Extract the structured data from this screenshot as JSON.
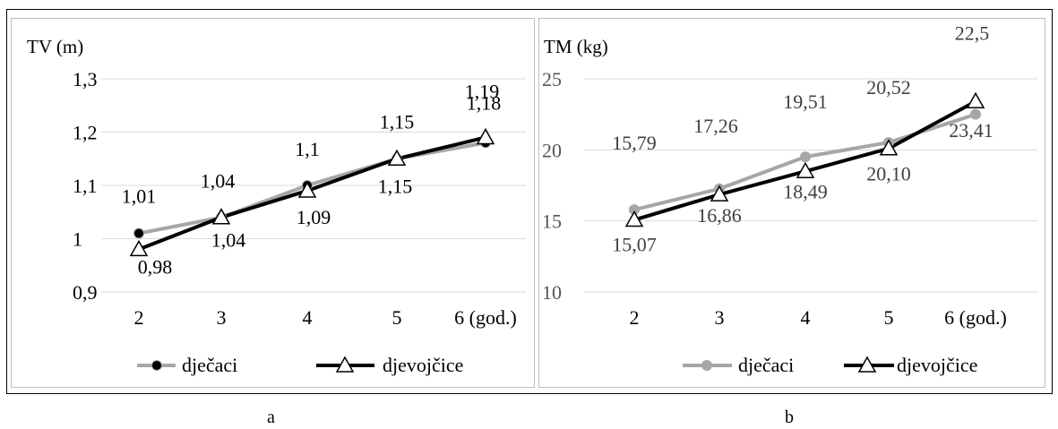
{
  "figure": {
    "caption_a": "a",
    "caption_b": "b"
  },
  "colors": {
    "boys": "#a6a6a6",
    "girls": "#000000",
    "grid": "#d9d9d9",
    "frame": "#bfbfbf"
  },
  "chart_data": [
    {
      "type": "line",
      "title": "TV (m)",
      "categories": [
        "2",
        "3",
        "4",
        "5",
        "6 (god.)"
      ],
      "ylim": [
        0.9,
        1.3
      ],
      "yticks": [
        {
          "value": 0.9,
          "label": "0,9"
        },
        {
          "value": 1.0,
          "label": "1"
        },
        {
          "value": 1.1,
          "label": "1,1"
        },
        {
          "value": 1.2,
          "label": "1,2"
        },
        {
          "value": 1.3,
          "label": "1,3"
        }
      ],
      "grid": true,
      "legend": "bottom",
      "series": [
        {
          "name": "dječaci",
          "marker": "circle",
          "color": "#a6a6a6",
          "values": [
            1.01,
            1.04,
            1.1,
            1.15,
            1.18
          ],
          "labels": [
            "1,01",
            "1,04",
            "1,1",
            "1,15",
            "1,18"
          ]
        },
        {
          "name": "djevojčice",
          "marker": "triangle",
          "color": "#000000",
          "values": [
            0.98,
            1.04,
            1.09,
            1.15,
            1.19
          ],
          "labels": [
            "0,98",
            "1,04",
            "1,09",
            "1,15",
            "1,19"
          ]
        }
      ]
    },
    {
      "type": "line",
      "title": "TM (kg)",
      "categories": [
        "2",
        "3",
        "4",
        "5",
        "6 (god.)"
      ],
      "ylim": [
        10,
        25
      ],
      "yticks": [
        {
          "value": 10,
          "label": "10"
        },
        {
          "value": 15,
          "label": "15"
        },
        {
          "value": 20,
          "label": "20"
        },
        {
          "value": 25,
          "label": "25"
        }
      ],
      "grid": true,
      "legend": "bottom",
      "series": [
        {
          "name": "dječaci",
          "marker": "circle",
          "color": "#a6a6a6",
          "values": [
            15.79,
            17.26,
            19.51,
            20.52,
            22.5
          ],
          "labels": [
            "15,79",
            "17,26",
            "19,51",
            "20,52",
            "22,5"
          ]
        },
        {
          "name": "djevojčice",
          "marker": "triangle",
          "color": "#000000",
          "values": [
            15.07,
            16.86,
            18.49,
            20.1,
            23.41
          ],
          "labels": [
            "15,07",
            "16,86",
            "18,49",
            "20,10",
            "23,41"
          ]
        }
      ]
    }
  ]
}
